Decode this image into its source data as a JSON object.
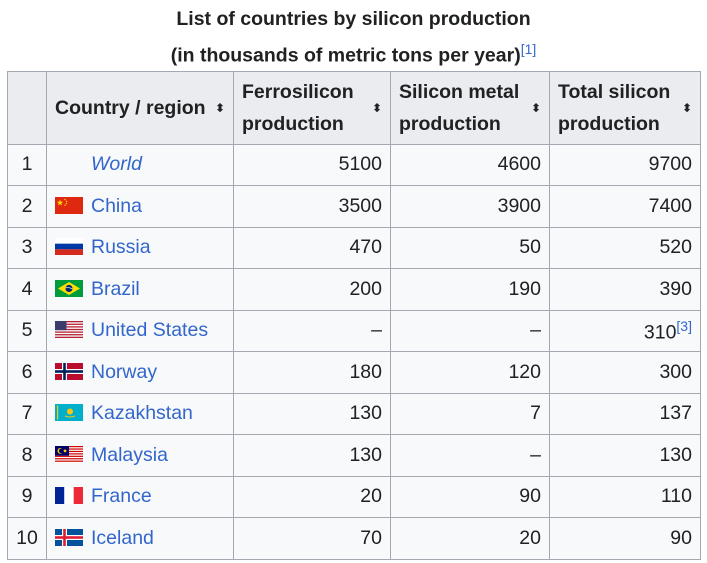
{
  "caption": {
    "line1": "List of countries by silicon production",
    "line2": "(in thousands of metric tons per year)",
    "ref": "[1]"
  },
  "headers": {
    "country": "Country / region",
    "ferro": "Ferrosilicon production",
    "metal": "Silicon metal production",
    "total": "Total silicon production"
  },
  "rows": [
    {
      "rank": "1",
      "country": "World",
      "flag": "none",
      "ferro": "5100",
      "metal": "4600",
      "total": "9700",
      "ref": ""
    },
    {
      "rank": "2",
      "country": "China",
      "flag": "china-flag-icon",
      "ferro": "3500",
      "metal": "3900",
      "total": "7400",
      "ref": ""
    },
    {
      "rank": "3",
      "country": "Russia",
      "flag": "russia-flag-icon",
      "ferro": "470",
      "metal": "50",
      "total": "520",
      "ref": ""
    },
    {
      "rank": "4",
      "country": "Brazil",
      "flag": "brazil-flag-icon",
      "ferro": "200",
      "metal": "190",
      "total": "390",
      "ref": ""
    },
    {
      "rank": "5",
      "country": "United States",
      "flag": "usa-flag-icon",
      "ferro": "–",
      "metal": "–",
      "total": "310",
      "ref": "[3]"
    },
    {
      "rank": "6",
      "country": "Norway",
      "flag": "norway-flag-icon",
      "ferro": "180",
      "metal": "120",
      "total": "300",
      "ref": ""
    },
    {
      "rank": "7",
      "country": "Kazakhstan",
      "flag": "kazakhstan-flag-icon",
      "ferro": "130",
      "metal": "7",
      "total": "137",
      "ref": ""
    },
    {
      "rank": "8",
      "country": "Malaysia",
      "flag": "malaysia-flag-icon",
      "ferro": "130",
      "metal": "–",
      "total": "130",
      "ref": ""
    },
    {
      "rank": "9",
      "country": "France",
      "flag": "france-flag-icon",
      "ferro": "20",
      "metal": "90",
      "total": "110",
      "ref": ""
    },
    {
      "rank": "10",
      "country": "Iceland",
      "flag": "iceland-flag-icon",
      "ferro": "70",
      "metal": "20",
      "total": "90",
      "ref": ""
    }
  ],
  "colors": {
    "link": "#3366cc",
    "header_bg": "#eaecf0",
    "cell_bg": "#f8f9fa",
    "border": "#a2a9b1"
  }
}
